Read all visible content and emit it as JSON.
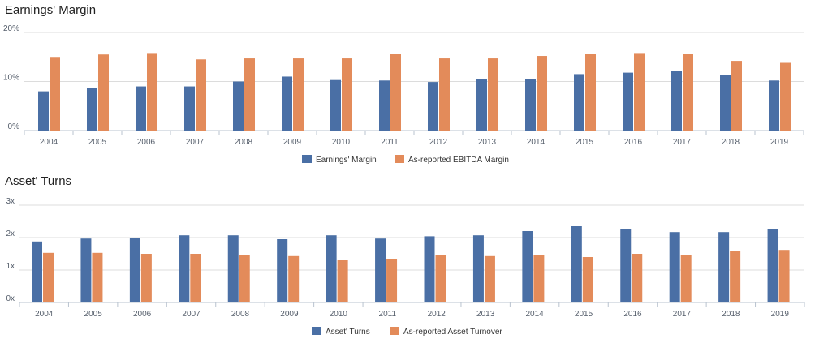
{
  "chart_data": [
    {
      "type": "bar",
      "title": "Earnings' Margin",
      "categories": [
        "2004",
        "2005",
        "2006",
        "2007",
        "2008",
        "2009",
        "2010",
        "2011",
        "2012",
        "2013",
        "2014",
        "2015",
        "2016",
        "2017",
        "2018",
        "2019"
      ],
      "series": [
        {
          "name": "Earnings' Margin",
          "color": "#4a6fa5",
          "values": [
            8.0,
            8.7,
            9.0,
            9.0,
            10.0,
            11.0,
            10.3,
            10.2,
            9.9,
            10.5,
            10.5,
            11.5,
            11.8,
            12.1,
            11.3,
            10.2
          ]
        },
        {
          "name": "As-reported EBITDA Margin",
          "color": "#e38b5a",
          "values": [
            15.0,
            15.5,
            15.8,
            14.5,
            14.7,
            14.7,
            14.7,
            15.7,
            14.7,
            14.7,
            15.2,
            15.7,
            15.8,
            15.7,
            14.2,
            13.8
          ]
        }
      ],
      "yticks": [
        "0%",
        "10%",
        "20%"
      ],
      "ylim": [
        0,
        20
      ],
      "grid": true,
      "legend": "bottom-center"
    },
    {
      "type": "bar",
      "title": "Asset' Turns",
      "categories": [
        "2004",
        "2005",
        "2006",
        "2007",
        "2008",
        "2009",
        "2010",
        "2011",
        "2012",
        "2013",
        "2014",
        "2015",
        "2016",
        "2017",
        "2018",
        "2019"
      ],
      "series": [
        {
          "name": "Asset' Turns",
          "color": "#4a6fa5",
          "values": [
            1.88,
            1.97,
            2.0,
            2.07,
            2.07,
            1.95,
            2.07,
            1.97,
            2.04,
            2.07,
            2.2,
            2.35,
            2.25,
            2.17,
            2.17,
            2.25
          ]
        },
        {
          "name": "As-reported Asset Turnover",
          "color": "#e38b5a",
          "values": [
            1.53,
            1.53,
            1.5,
            1.5,
            1.47,
            1.43,
            1.3,
            1.33,
            1.47,
            1.43,
            1.47,
            1.4,
            1.5,
            1.45,
            1.6,
            1.62
          ]
        }
      ],
      "yticks": [
        "0x",
        "1x",
        "2x",
        "3x"
      ],
      "ylim": [
        0,
        3
      ],
      "grid": true,
      "legend": "bottom-center"
    }
  ]
}
